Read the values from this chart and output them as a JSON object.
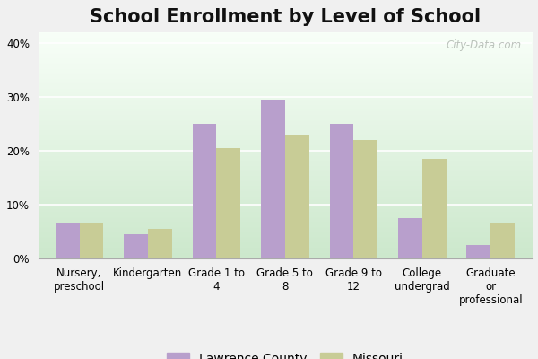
{
  "title": "School Enrollment by Level of School",
  "categories": [
    "Nursery,\npreschool",
    "Kindergarten",
    "Grade 1 to\n4",
    "Grade 5 to\n8",
    "Grade 9 to\n12",
    "College\nundergrad",
    "Graduate\nor\nprofessional"
  ],
  "lawrence_county": [
    6.5,
    4.5,
    25.0,
    29.5,
    25.0,
    7.5,
    2.5
  ],
  "missouri": [
    6.5,
    5.5,
    20.5,
    23.0,
    22.0,
    18.5,
    6.5
  ],
  "lawrence_color": "#b89fcc",
  "missouri_color": "#c8cc96",
  "ylim": [
    0,
    42
  ],
  "yticks": [
    0,
    10,
    20,
    30,
    40
  ],
  "ytick_labels": [
    "0%",
    "10%",
    "20%",
    "30%",
    "40%"
  ],
  "title_fontsize": 15,
  "tick_fontsize": 8.5,
  "legend_fontsize": 10,
  "bar_width": 0.35,
  "watermark": "City-Data.com",
  "outer_bg": "#f0f0f0",
  "grad_top": "#cce8cc",
  "grad_bottom": "#f8fff8"
}
